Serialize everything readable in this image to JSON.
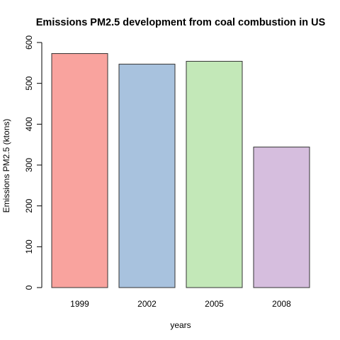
{
  "chart_data": {
    "type": "bar",
    "title": "Emissions PM2.5 development from coal combustion in US",
    "xlabel": "years",
    "ylabel": "Emissions PM2.5 (ktons)",
    "categories": [
      "1999",
      "2002",
      "2005",
      "2008"
    ],
    "values": [
      573,
      547,
      554,
      344
    ],
    "ylim": [
      0,
      600
    ],
    "yticks": [
      0,
      100,
      200,
      300,
      400,
      500,
      600
    ],
    "colors": [
      "#F9A39E",
      "#A8C2DE",
      "#C3E8B8",
      "#D6BEDE"
    ],
    "bar_edge_color": "#333333",
    "grid": false,
    "legend": "none"
  }
}
